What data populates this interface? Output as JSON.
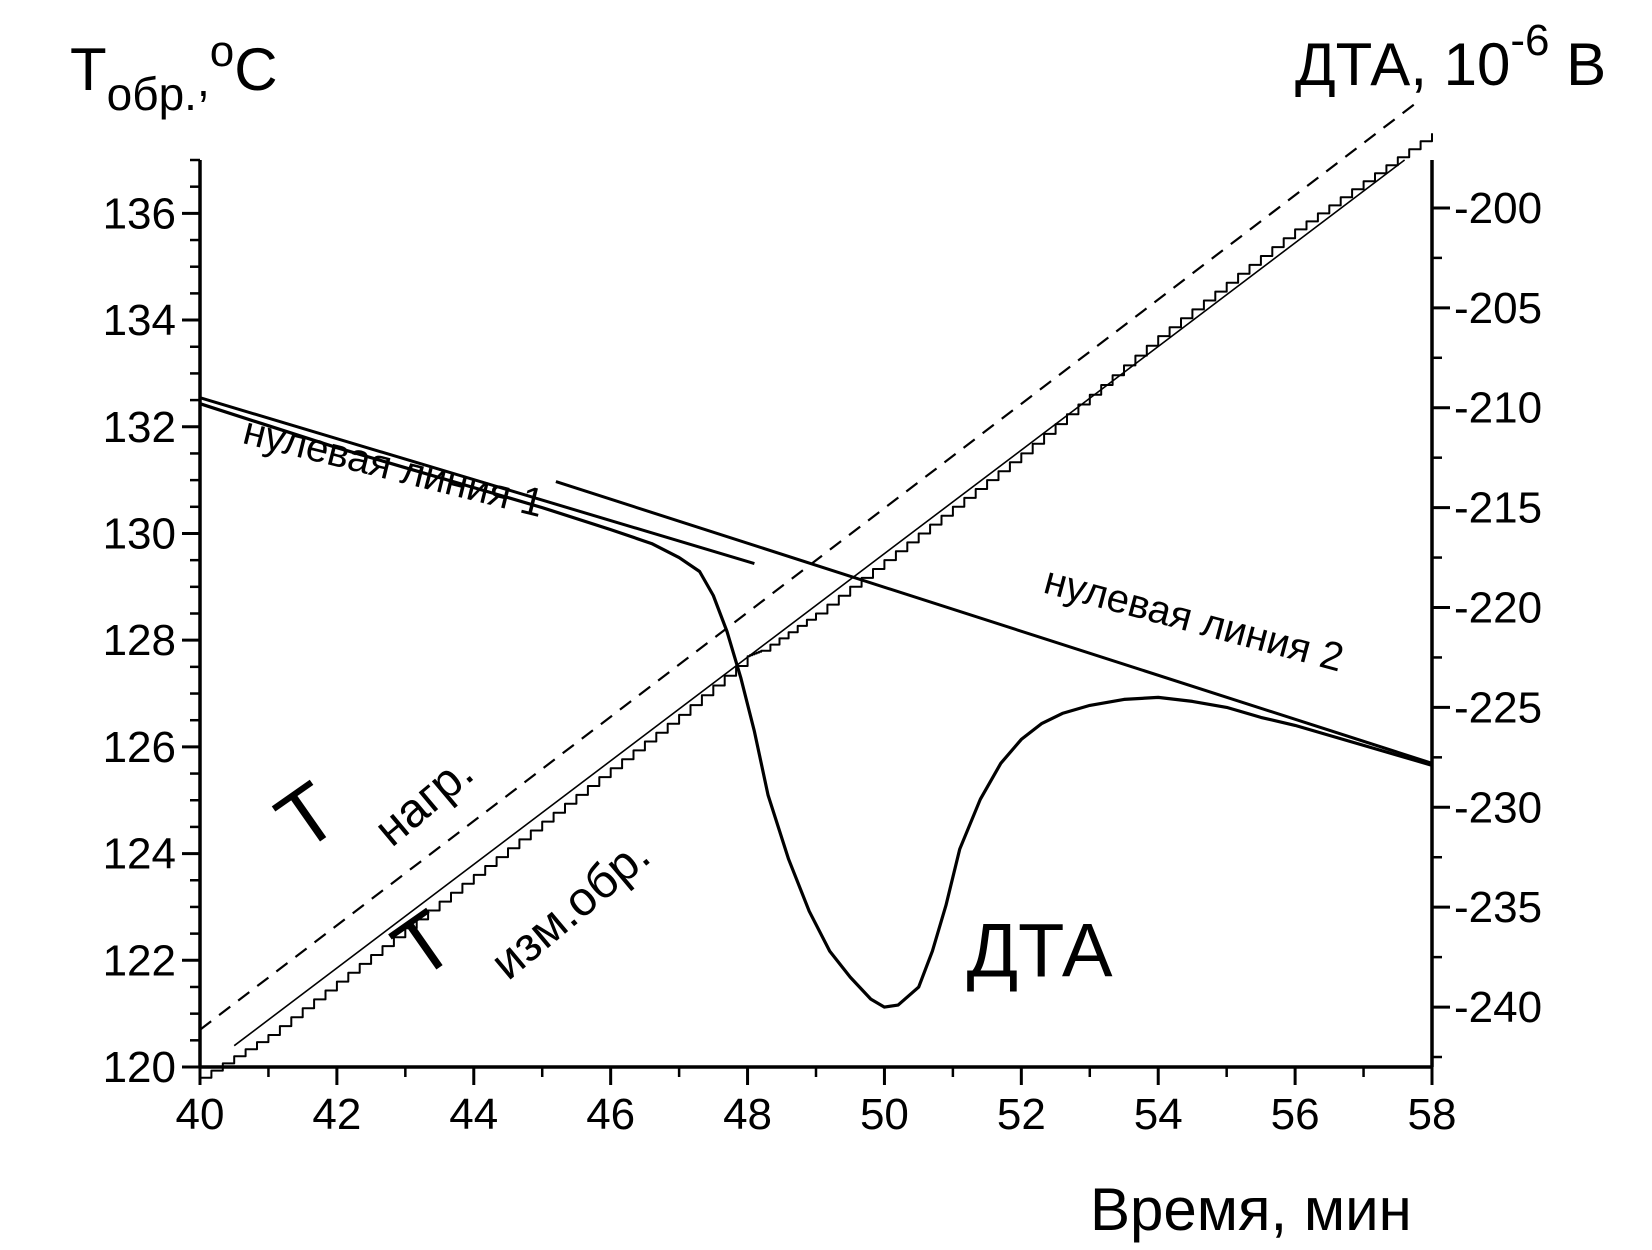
{
  "chart_data": {
    "type": "line",
    "title": "",
    "xlabel": "Время, мин",
    "ylabel_left": {
      "main": "T",
      "sub": "обр.",
      "sep": ",",
      "sup": "o",
      "unit": "C"
    },
    "ylabel_right": {
      "main": "ДТА, 10",
      "sup": "-6",
      "unit": " В"
    },
    "xlim": [
      40,
      58
    ],
    "ylim_left": [
      120,
      137
    ],
    "ylim_right": [
      -243.0,
      -197.6
    ],
    "x_ticks": [
      40,
      42,
      44,
      46,
      48,
      50,
      52,
      54,
      56,
      58
    ],
    "x_tick_labels": [
      "40",
      "42",
      "44",
      "46",
      "48",
      "50",
      "52",
      "54",
      "56",
      "58"
    ],
    "left_ticks": [
      120,
      122,
      124,
      126,
      128,
      130,
      132,
      134,
      136
    ],
    "left_tick_labels": [
      "120",
      "122",
      "124",
      "126",
      "128",
      "130",
      "132",
      "134",
      "136"
    ],
    "right_ticks": [
      -240,
      -235,
      -230,
      -225,
      -220,
      -215,
      -210,
      -205,
      -200
    ],
    "right_tick_labels": [
      "-240",
      "-235",
      "-230",
      "-225",
      "-220",
      "-215",
      "-210",
      "-205",
      "-200"
    ],
    "grid": false,
    "legend": "none",
    "series": [
      {
        "axis": "left",
        "style": "dashed",
        "x": [
          40.0,
          57.8
        ],
        "y": [
          120.7,
          138.1
        ]
      },
      {
        "axis": "left",
        "style": "thin",
        "x": [
          40.5,
          57.6
        ],
        "y": [
          120.4,
          137.0
        ]
      },
      {
        "axis": "left",
        "style": "noisy",
        "x": [
          40.0,
          41.0,
          42.0,
          43.0,
          44.0,
          45.0,
          46.0,
          47.0,
          48.0,
          48.2,
          49.0,
          50.0,
          51.0,
          52.0,
          53.0,
          54.0,
          55.0,
          56.0,
          57.0,
          58.0
        ],
        "y": [
          119.8,
          120.6,
          121.6,
          122.6,
          123.6,
          124.6,
          125.6,
          126.6,
          127.7,
          127.8,
          128.5,
          129.5,
          130.5,
          131.5,
          132.6,
          133.7,
          134.7,
          135.7,
          136.6,
          137.5
        ]
      },
      {
        "axis": "right",
        "style": "thick",
        "x": [
          40.0,
          41.0,
          42.0,
          43.0,
          44.0,
          45.0,
          46.0,
          46.6,
          47.0,
          47.3,
          47.5,
          47.7,
          47.9,
          48.1,
          48.3,
          48.6,
          48.9,
          49.2,
          49.5,
          49.8,
          50.0,
          50.2,
          50.5,
          50.7,
          50.9,
          51.1,
          51.4,
          51.7,
          52.0,
          52.3,
          52.6,
          53.0,
          53.5,
          54.0,
          54.5,
          55.0,
          55.5,
          56.0,
          56.5,
          57.0,
          57.5,
          58.0
        ],
        "y": [
          -209.8,
          -210.9,
          -212.0,
          -213.0,
          -214.0,
          -215.0,
          -216.1,
          -216.8,
          -217.5,
          -218.2,
          -219.4,
          -221.2,
          -223.5,
          -226.2,
          -229.4,
          -232.6,
          -235.2,
          -237.2,
          -238.5,
          -239.6,
          -240.0,
          -239.9,
          -239.0,
          -237.2,
          -234.9,
          -232.1,
          -229.6,
          -227.8,
          -226.6,
          -225.8,
          -225.3,
          -224.9,
          -224.6,
          -224.5,
          -224.7,
          -225.0,
          -225.5,
          -225.9,
          -226.4,
          -226.9,
          -227.4,
          -227.9
        ]
      },
      {
        "axis": "right",
        "style": "tangent",
        "x": [
          40.0,
          48.1
        ],
        "y": [
          -209.5,
          -217.8
        ]
      },
      {
        "axis": "right",
        "style": "tangent",
        "x": [
          45.2,
          58.0
        ],
        "y": [
          -213.7,
          -227.8
        ]
      }
    ],
    "annotations": [
      {
        "text": "нулевая линия 1",
        "x": 40.6,
        "y": 131.7,
        "rotate": 14,
        "size": "small"
      },
      {
        "text": "нулевая линия 2",
        "x": 52.3,
        "y": 128.9,
        "rotate": 15,
        "size": "small"
      },
      {
        "text": "T",
        "x": 41.5,
        "y": 124.0,
        "rotate": -35,
        "size": "big"
      },
      {
        "text": "нагр.",
        "x": 42.8,
        "y": 124.1,
        "rotate": -40,
        "size": "mid"
      },
      {
        "text": "T",
        "x": 43.2,
        "y": 121.6,
        "rotate": -35,
        "size": "big"
      },
      {
        "text": "изм.обр.",
        "x": 44.5,
        "y": 121.6,
        "rotate": -40,
        "size": "mid"
      },
      {
        "text": "ДТА",
        "x": 51.2,
        "y": 121.7,
        "rotate": 0,
        "size": "dta"
      }
    ]
  }
}
